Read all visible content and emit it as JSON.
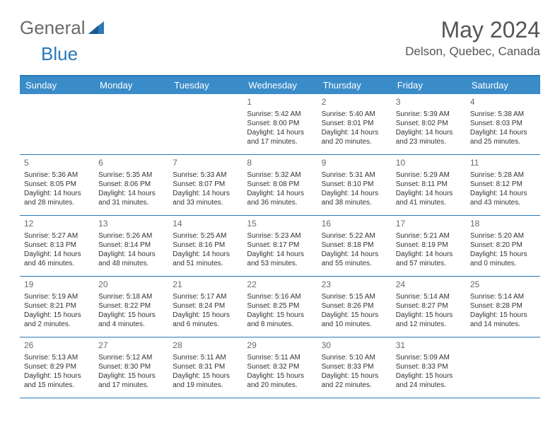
{
  "brand": {
    "word1": "General",
    "word2": "Blue"
  },
  "title": "May 2024",
  "location": "Delson, Quebec, Canada",
  "colors": {
    "header_bg": "#3a8cc9",
    "accent": "#2a79b8",
    "text": "#333333",
    "muted": "#6a6a6a",
    "bg": "#ffffff"
  },
  "dayHeaders": [
    "Sunday",
    "Monday",
    "Tuesday",
    "Wednesday",
    "Thursday",
    "Friday",
    "Saturday"
  ],
  "weeks": [
    [
      {
        "n": "",
        "sr": "",
        "ss": "",
        "dl1": "",
        "dl2": ""
      },
      {
        "n": "",
        "sr": "",
        "ss": "",
        "dl1": "",
        "dl2": ""
      },
      {
        "n": "",
        "sr": "",
        "ss": "",
        "dl1": "",
        "dl2": ""
      },
      {
        "n": "1",
        "sr": "Sunrise: 5:42 AM",
        "ss": "Sunset: 8:00 PM",
        "dl1": "Daylight: 14 hours",
        "dl2": "and 17 minutes."
      },
      {
        "n": "2",
        "sr": "Sunrise: 5:40 AM",
        "ss": "Sunset: 8:01 PM",
        "dl1": "Daylight: 14 hours",
        "dl2": "and 20 minutes."
      },
      {
        "n": "3",
        "sr": "Sunrise: 5:39 AM",
        "ss": "Sunset: 8:02 PM",
        "dl1": "Daylight: 14 hours",
        "dl2": "and 23 minutes."
      },
      {
        "n": "4",
        "sr": "Sunrise: 5:38 AM",
        "ss": "Sunset: 8:03 PM",
        "dl1": "Daylight: 14 hours",
        "dl2": "and 25 minutes."
      }
    ],
    [
      {
        "n": "5",
        "sr": "Sunrise: 5:36 AM",
        "ss": "Sunset: 8:05 PM",
        "dl1": "Daylight: 14 hours",
        "dl2": "and 28 minutes."
      },
      {
        "n": "6",
        "sr": "Sunrise: 5:35 AM",
        "ss": "Sunset: 8:06 PM",
        "dl1": "Daylight: 14 hours",
        "dl2": "and 31 minutes."
      },
      {
        "n": "7",
        "sr": "Sunrise: 5:33 AM",
        "ss": "Sunset: 8:07 PM",
        "dl1": "Daylight: 14 hours",
        "dl2": "and 33 minutes."
      },
      {
        "n": "8",
        "sr": "Sunrise: 5:32 AM",
        "ss": "Sunset: 8:08 PM",
        "dl1": "Daylight: 14 hours",
        "dl2": "and 36 minutes."
      },
      {
        "n": "9",
        "sr": "Sunrise: 5:31 AM",
        "ss": "Sunset: 8:10 PM",
        "dl1": "Daylight: 14 hours",
        "dl2": "and 38 minutes."
      },
      {
        "n": "10",
        "sr": "Sunrise: 5:29 AM",
        "ss": "Sunset: 8:11 PM",
        "dl1": "Daylight: 14 hours",
        "dl2": "and 41 minutes."
      },
      {
        "n": "11",
        "sr": "Sunrise: 5:28 AM",
        "ss": "Sunset: 8:12 PM",
        "dl1": "Daylight: 14 hours",
        "dl2": "and 43 minutes."
      }
    ],
    [
      {
        "n": "12",
        "sr": "Sunrise: 5:27 AM",
        "ss": "Sunset: 8:13 PM",
        "dl1": "Daylight: 14 hours",
        "dl2": "and 46 minutes."
      },
      {
        "n": "13",
        "sr": "Sunrise: 5:26 AM",
        "ss": "Sunset: 8:14 PM",
        "dl1": "Daylight: 14 hours",
        "dl2": "and 48 minutes."
      },
      {
        "n": "14",
        "sr": "Sunrise: 5:25 AM",
        "ss": "Sunset: 8:16 PM",
        "dl1": "Daylight: 14 hours",
        "dl2": "and 51 minutes."
      },
      {
        "n": "15",
        "sr": "Sunrise: 5:23 AM",
        "ss": "Sunset: 8:17 PM",
        "dl1": "Daylight: 14 hours",
        "dl2": "and 53 minutes."
      },
      {
        "n": "16",
        "sr": "Sunrise: 5:22 AM",
        "ss": "Sunset: 8:18 PM",
        "dl1": "Daylight: 14 hours",
        "dl2": "and 55 minutes."
      },
      {
        "n": "17",
        "sr": "Sunrise: 5:21 AM",
        "ss": "Sunset: 8:19 PM",
        "dl1": "Daylight: 14 hours",
        "dl2": "and 57 minutes."
      },
      {
        "n": "18",
        "sr": "Sunrise: 5:20 AM",
        "ss": "Sunset: 8:20 PM",
        "dl1": "Daylight: 15 hours",
        "dl2": "and 0 minutes."
      }
    ],
    [
      {
        "n": "19",
        "sr": "Sunrise: 5:19 AM",
        "ss": "Sunset: 8:21 PM",
        "dl1": "Daylight: 15 hours",
        "dl2": "and 2 minutes."
      },
      {
        "n": "20",
        "sr": "Sunrise: 5:18 AM",
        "ss": "Sunset: 8:22 PM",
        "dl1": "Daylight: 15 hours",
        "dl2": "and 4 minutes."
      },
      {
        "n": "21",
        "sr": "Sunrise: 5:17 AM",
        "ss": "Sunset: 8:24 PM",
        "dl1": "Daylight: 15 hours",
        "dl2": "and 6 minutes."
      },
      {
        "n": "22",
        "sr": "Sunrise: 5:16 AM",
        "ss": "Sunset: 8:25 PM",
        "dl1": "Daylight: 15 hours",
        "dl2": "and 8 minutes."
      },
      {
        "n": "23",
        "sr": "Sunrise: 5:15 AM",
        "ss": "Sunset: 8:26 PM",
        "dl1": "Daylight: 15 hours",
        "dl2": "and 10 minutes."
      },
      {
        "n": "24",
        "sr": "Sunrise: 5:14 AM",
        "ss": "Sunset: 8:27 PM",
        "dl1": "Daylight: 15 hours",
        "dl2": "and 12 minutes."
      },
      {
        "n": "25",
        "sr": "Sunrise: 5:14 AM",
        "ss": "Sunset: 8:28 PM",
        "dl1": "Daylight: 15 hours",
        "dl2": "and 14 minutes."
      }
    ],
    [
      {
        "n": "26",
        "sr": "Sunrise: 5:13 AM",
        "ss": "Sunset: 8:29 PM",
        "dl1": "Daylight: 15 hours",
        "dl2": "and 15 minutes."
      },
      {
        "n": "27",
        "sr": "Sunrise: 5:12 AM",
        "ss": "Sunset: 8:30 PM",
        "dl1": "Daylight: 15 hours",
        "dl2": "and 17 minutes."
      },
      {
        "n": "28",
        "sr": "Sunrise: 5:11 AM",
        "ss": "Sunset: 8:31 PM",
        "dl1": "Daylight: 15 hours",
        "dl2": "and 19 minutes."
      },
      {
        "n": "29",
        "sr": "Sunrise: 5:11 AM",
        "ss": "Sunset: 8:32 PM",
        "dl1": "Daylight: 15 hours",
        "dl2": "and 20 minutes."
      },
      {
        "n": "30",
        "sr": "Sunrise: 5:10 AM",
        "ss": "Sunset: 8:33 PM",
        "dl1": "Daylight: 15 hours",
        "dl2": "and 22 minutes."
      },
      {
        "n": "31",
        "sr": "Sunrise: 5:09 AM",
        "ss": "Sunset: 8:33 PM",
        "dl1": "Daylight: 15 hours",
        "dl2": "and 24 minutes."
      },
      {
        "n": "",
        "sr": "",
        "ss": "",
        "dl1": "",
        "dl2": ""
      }
    ]
  ]
}
